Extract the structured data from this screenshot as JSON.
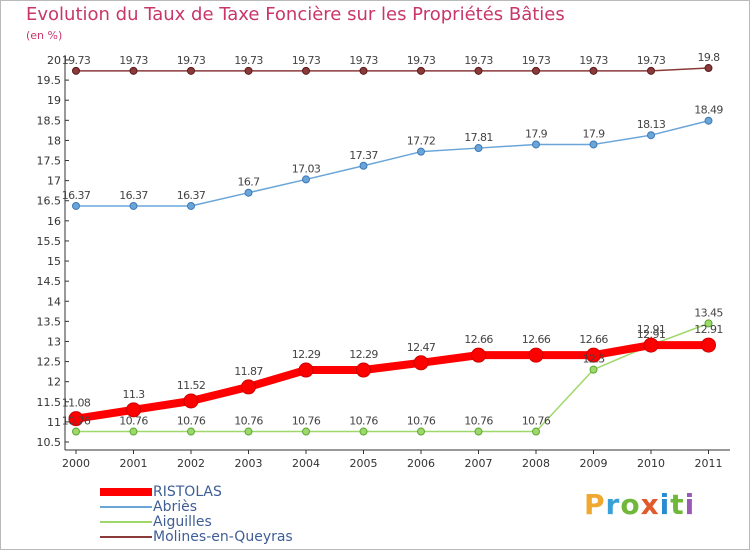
{
  "title": "Evolution du Taux de Taxe Foncière sur les Propriétés Bâties",
  "unit": "(en %)",
  "logo": {
    "letters": [
      "P",
      "r",
      "o",
      "x",
      "i",
      "t",
      "i"
    ],
    "colors": [
      "#f0a830",
      "#3aa0d8",
      "#70b83a",
      "#e05a2a",
      "#2c8ad0",
      "#70b83a",
      "#9b59b6"
    ]
  },
  "chart_data": {
    "type": "line",
    "x": [
      "2000",
      "2001",
      "2002",
      "2003",
      "2004",
      "2005",
      "2006",
      "2007",
      "2008",
      "2009",
      "2010",
      "2011"
    ],
    "ylim": [
      10.5,
      20
    ],
    "yticks": [
      "10.5",
      "11",
      "11.5",
      "12",
      "12.5",
      "13",
      "13.5",
      "14",
      "14.5",
      "15",
      "15.5",
      "16",
      "16.5",
      "17",
      "17.5",
      "18",
      "18.5",
      "19",
      "19.5",
      "20"
    ],
    "grid": false,
    "legend_position": "bottom-left",
    "series": [
      {
        "name": "RISTOLAS",
        "color": "#ff0000",
        "values": [
          11.08,
          11.3,
          11.52,
          11.87,
          12.29,
          12.29,
          12.47,
          12.66,
          12.66,
          12.66,
          12.91,
          12.91
        ],
        "labels": [
          "11.08",
          "11.3",
          "11.52",
          "11.87",
          "12.29",
          "12.29",
          "12.47",
          "12.66",
          "12.66",
          "12.66",
          "12.91",
          "12.91"
        ]
      },
      {
        "name": "Abriès",
        "color": "#6aa5d8",
        "values": [
          16.37,
          16.37,
          16.37,
          16.7,
          17.03,
          17.37,
          17.72,
          17.81,
          17.9,
          17.9,
          18.13,
          18.49
        ],
        "labels": [
          "16.37",
          "16.37",
          "16.37",
          "16.7",
          "17.03",
          "17.37",
          "17.72",
          "17.81",
          "17.9",
          "17.9",
          "18.13",
          "18.49"
        ]
      },
      {
        "name": "Aiguilles",
        "color": "#9ed86a",
        "values": [
          10.76,
          10.76,
          10.76,
          10.76,
          10.76,
          10.76,
          10.76,
          10.76,
          10.76,
          12.3,
          12.91,
          13.45
        ],
        "labels": [
          "10.76",
          "10.76",
          "10.76",
          "10.76",
          "10.76",
          "10.76",
          "10.76",
          "10.76",
          "10.76",
          "12.3",
          "12.91",
          "13.45"
        ]
      },
      {
        "name": "Molines-en-Queyras",
        "color": "#8b3a3a",
        "values": [
          19.73,
          19.73,
          19.73,
          19.73,
          19.73,
          19.73,
          19.73,
          19.73,
          19.73,
          19.73,
          19.73,
          19.8
        ],
        "labels": [
          "19.73",
          "19.73",
          "19.73",
          "19.73",
          "19.73",
          "19.73",
          "19.73",
          "19.73",
          "19.73",
          "19.73",
          "19.73",
          "19.8"
        ]
      }
    ]
  }
}
